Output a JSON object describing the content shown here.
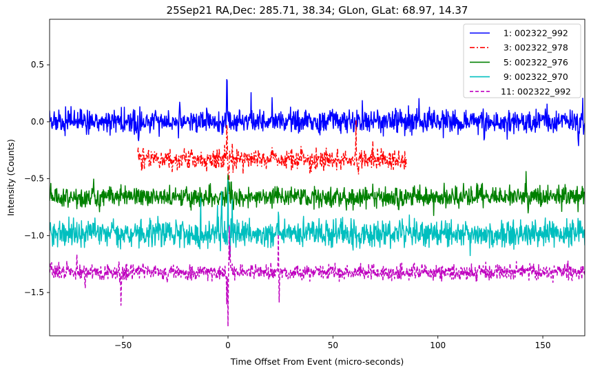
{
  "chart_data": {
    "type": "line",
    "title": "25Sep21 RA,Dec:  285.71,  38.34; GLon, GLat:   68.97,  14.37",
    "xlabel": "Time Offset From Event (micro-seconds)",
    "ylabel": "Intensity (Counts)",
    "xlim": [
      -85,
      170
    ],
    "ylim": [
      -1.88,
      0.9
    ],
    "xticks": [
      -50,
      0,
      50,
      100,
      150
    ],
    "yticks": [
      0.5,
      0.0,
      -0.5,
      -1.0,
      -1.5
    ],
    "xtick_labels": [
      "−50",
      "0",
      "50",
      "100",
      "150"
    ],
    "ytick_labels": [
      "0.5",
      "0.0",
      "−0.5",
      "−1.0",
      "−1.5"
    ],
    "legend_position": "top-right",
    "series": [
      {
        "name": "1: 002322_992",
        "label": "   1: 002322_992",
        "color": "#0000ff",
        "style": "solid",
        "x_range": [
          -85,
          170
        ],
        "baseline": 0.0,
        "noise": 0.05,
        "spikes": [
          [
            -42,
            0.2
          ],
          [
            -42.5,
            -0.2
          ],
          [
            -23,
            0.15
          ],
          [
            -10,
            0.18
          ],
          [
            -0.5,
            0.41
          ],
          [
            11,
            0.15
          ],
          [
            21,
            0.16
          ],
          [
            64,
            0.17
          ],
          [
            91,
            0.27
          ],
          [
            96,
            0.13
          ],
          [
            122,
            -0.15
          ],
          [
            133,
            -0.14
          ],
          [
            152,
            0.12
          ],
          [
            167,
            -0.2
          ],
          [
            169,
            0.22
          ]
        ]
      },
      {
        "name": "3: 002322_978",
        "label": "   3: 002322_978",
        "color": "#ff0000",
        "style": "dashdot",
        "x_range": [
          -43,
          85
        ],
        "baseline": -0.33,
        "noise": 0.045,
        "spikes": [
          [
            -0.5,
            0.3
          ],
          [
            0.3,
            -0.28
          ],
          [
            2,
            0.18
          ],
          [
            61,
            0.3
          ],
          [
            62,
            -0.15
          ],
          [
            69,
            0.15
          ],
          [
            73,
            0.12
          ]
        ]
      },
      {
        "name": "5: 002322_976",
        "label": "   5: 002322_976",
        "color": "#008000",
        "style": "solid",
        "x_range": [
          -85,
          170
        ],
        "baseline": -0.66,
        "noise": 0.045,
        "spikes": [
          [
            -64,
            0.15
          ],
          [
            -49,
            0.12
          ],
          [
            0,
            0.18
          ],
          [
            1.5,
            0.15
          ],
          [
            2.5,
            -0.15
          ],
          [
            69,
            0.17
          ],
          [
            98,
            -0.15
          ],
          [
            142,
            0.22
          ],
          [
            143,
            -0.14
          ],
          [
            157,
            0.12
          ]
        ]
      },
      {
        "name": "9: 002322_970",
        "label": "   9: 002322_970",
        "color": "#00bfbf",
        "style": "solid",
        "x_range": [
          -85,
          170
        ],
        "baseline": -0.98,
        "noise": 0.06,
        "spikes": [
          [
            -13,
            0.25
          ],
          [
            -5,
            0.3
          ],
          [
            -3,
            0.3
          ],
          [
            0,
            0.38
          ],
          [
            1,
            -0.28
          ],
          [
            2,
            0.25
          ],
          [
            24,
            0.15
          ],
          [
            145,
            0.12
          ]
        ]
      },
      {
        "name": "11: 002322_992",
        "label": "  11: 002322_992",
        "color": "#bf00bf",
        "style": "dashed",
        "x_range": [
          -85,
          170
        ],
        "baseline": -1.32,
        "noise": 0.035,
        "spikes": [
          [
            -51,
            -0.3
          ],
          [
            -52,
            0.15
          ],
          [
            -68,
            -0.16
          ],
          [
            -72,
            0.16
          ],
          [
            0,
            -0.47
          ],
          [
            0.6,
            0.38
          ],
          [
            -0.6,
            -0.3
          ],
          [
            24,
            0.28
          ],
          [
            24.4,
            -0.28
          ],
          [
            1,
            0.2
          ]
        ]
      }
    ]
  }
}
